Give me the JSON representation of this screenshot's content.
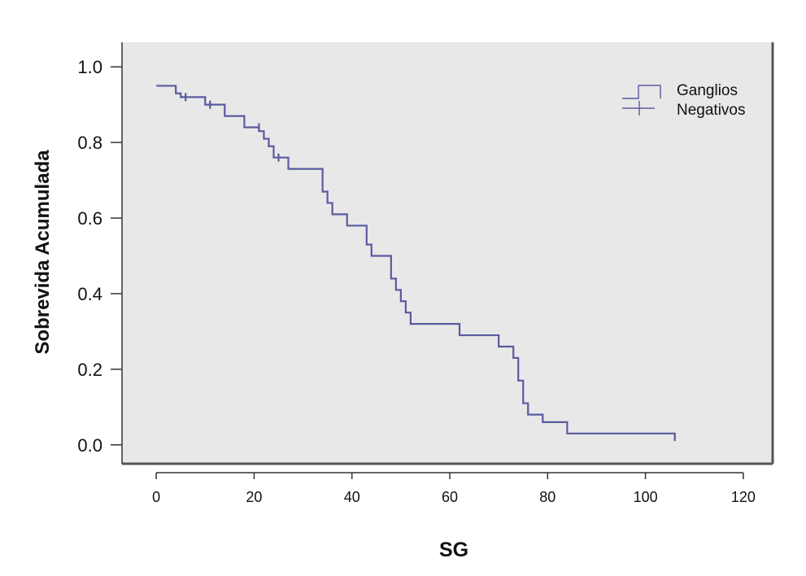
{
  "chart_data": {
    "type": "line",
    "title": "",
    "xlabel": "SG",
    "ylabel": "Sobrevida Acumulada",
    "xlim": [
      -7,
      126
    ],
    "ylim": [
      -0.05,
      1.065
    ],
    "x_ticks": [
      0,
      20,
      40,
      60,
      80,
      100,
      120
    ],
    "x_tick_labels": [
      "0",
      "20",
      "40",
      "60",
      "80",
      "100",
      "120"
    ],
    "y_ticks": [
      0.0,
      0.2,
      0.4,
      0.6,
      0.8,
      1.0
    ],
    "y_tick_labels": [
      "0.0",
      "0.2",
      "0.4",
      "0.6",
      "0.8",
      "1.0"
    ],
    "grid": false,
    "legend_position": "top-right",
    "plot_background": "#e8e8e8",
    "frame_color": "#555555",
    "series": [
      {
        "name": "Ganglios Negativos",
        "color": "#5a5aa0",
        "step": true,
        "x": [
          0,
          4,
          5,
          10,
          14,
          18,
          21,
          22,
          23,
          24,
          25,
          27,
          34,
          35,
          36,
          39,
          43,
          44,
          48,
          49,
          50,
          51,
          52,
          62,
          70,
          73,
          74,
          75,
          76,
          79,
          84,
          106
        ],
        "y": [
          0.95,
          0.93,
          0.92,
          0.9,
          0.87,
          0.84,
          0.83,
          0.81,
          0.79,
          0.76,
          0.76,
          0.73,
          0.67,
          0.64,
          0.61,
          0.58,
          0.53,
          0.5,
          0.44,
          0.41,
          0.38,
          0.35,
          0.32,
          0.29,
          0.26,
          0.23,
          0.17,
          0.11,
          0.08,
          0.06,
          0.03,
          0.01
        ],
        "censored": [
          {
            "x": 6,
            "y": 0.92
          },
          {
            "x": 11,
            "y": 0.9
          },
          {
            "x": 21,
            "y": 0.84
          },
          {
            "x": 25,
            "y": 0.76
          }
        ]
      }
    ]
  }
}
